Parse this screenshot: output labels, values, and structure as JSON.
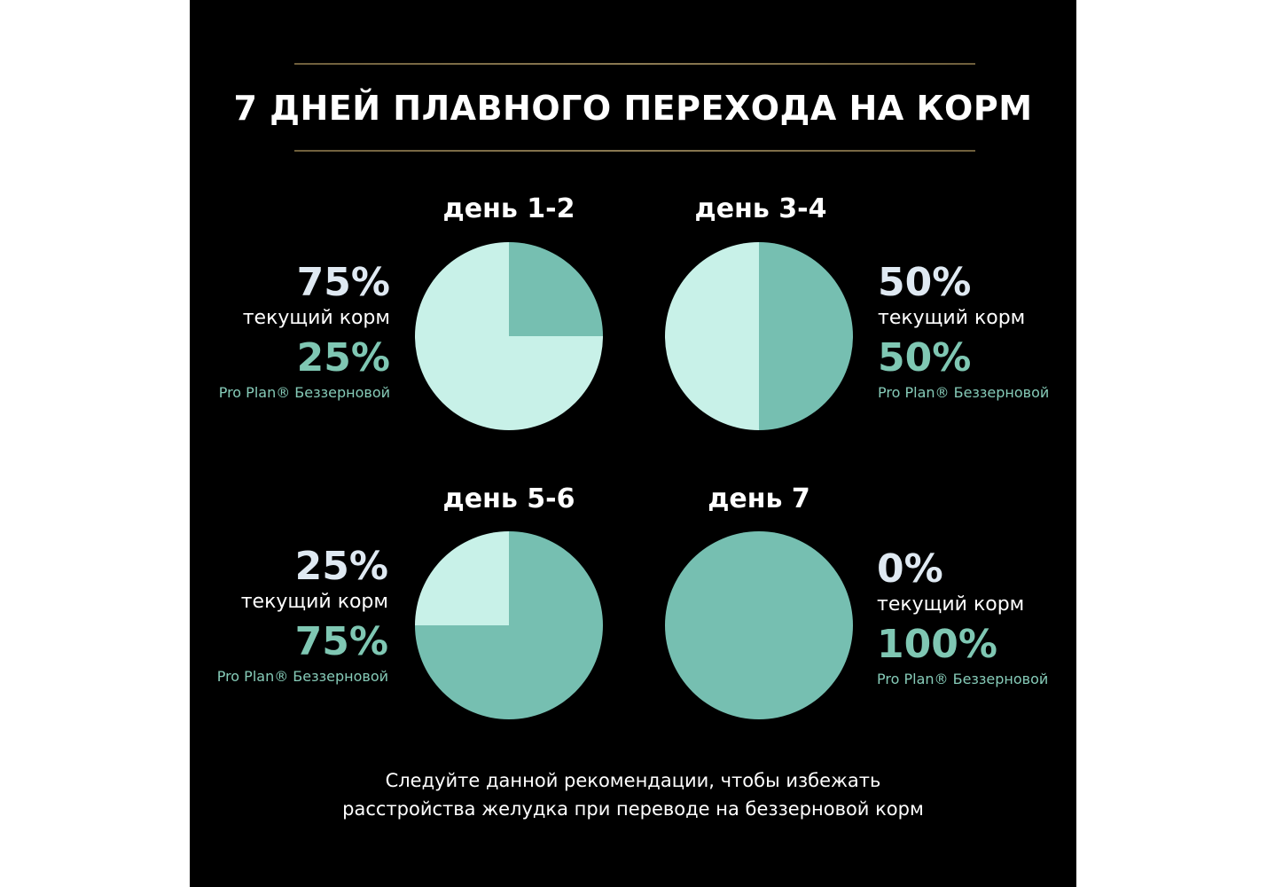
{
  "title": "7 ДНЕЙ ПЛАВНОГО ПЕРЕХОДА НА КОРМ",
  "note_line1": "Следуйте данной рекомендации, чтобы избежать",
  "note_line2": "расстройства желудка при переводе на беззерновой корм",
  "colors": {
    "current": "#c8f1e8",
    "pro_plan": "#76bfb1",
    "background": "#000000"
  },
  "chart_data": {
    "type": "pie",
    "charts": [
      {
        "day": "день 1-2",
        "current_pct": 75,
        "pro_plan_pct": 25,
        "current_text": "75%",
        "pro_plan_text": "25%",
        "current_label": "текущий корм",
        "pro_plan_label": "Pro Plan® Беззерновой"
      },
      {
        "day": "день 3-4",
        "current_pct": 50,
        "pro_plan_pct": 50,
        "current_text": "50%",
        "pro_plan_text": "50%",
        "current_label": "текущий корм",
        "pro_plan_label": "Pro Plan® Беззерновой"
      },
      {
        "day": "день 5-6",
        "current_pct": 25,
        "pro_plan_pct": 75,
        "current_text": "25%",
        "pro_plan_text": "75%",
        "current_label": "текущий корм",
        "pro_plan_label": "Pro Plan® Беззерновой"
      },
      {
        "day": "день 7",
        "current_pct": 0,
        "pro_plan_pct": 100,
        "current_text": "0%",
        "pro_plan_text": "100%",
        "current_label": "текущий корм",
        "pro_plan_label": "Pro Plan® Беззерновой"
      }
    ]
  }
}
